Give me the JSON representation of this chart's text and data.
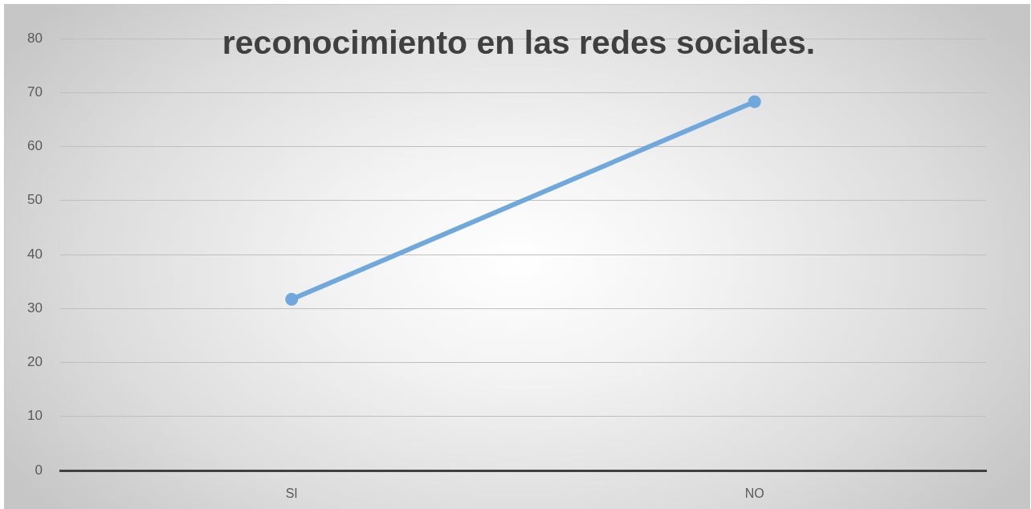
{
  "chart_data": {
    "type": "line",
    "title": "reconocimiento en las redes sociales.",
    "categories": [
      "SI",
      "NO"
    ],
    "series": [
      {
        "color": "#6fa8dc",
        "values": [
          31.7,
          68.3
        ]
      }
    ],
    "ylim": [
      0,
      80
    ],
    "yticks": [
      0,
      10,
      20,
      30,
      40,
      50,
      60,
      70,
      80
    ],
    "grid": "y",
    "marker": "circle",
    "line_style": "solid"
  }
}
